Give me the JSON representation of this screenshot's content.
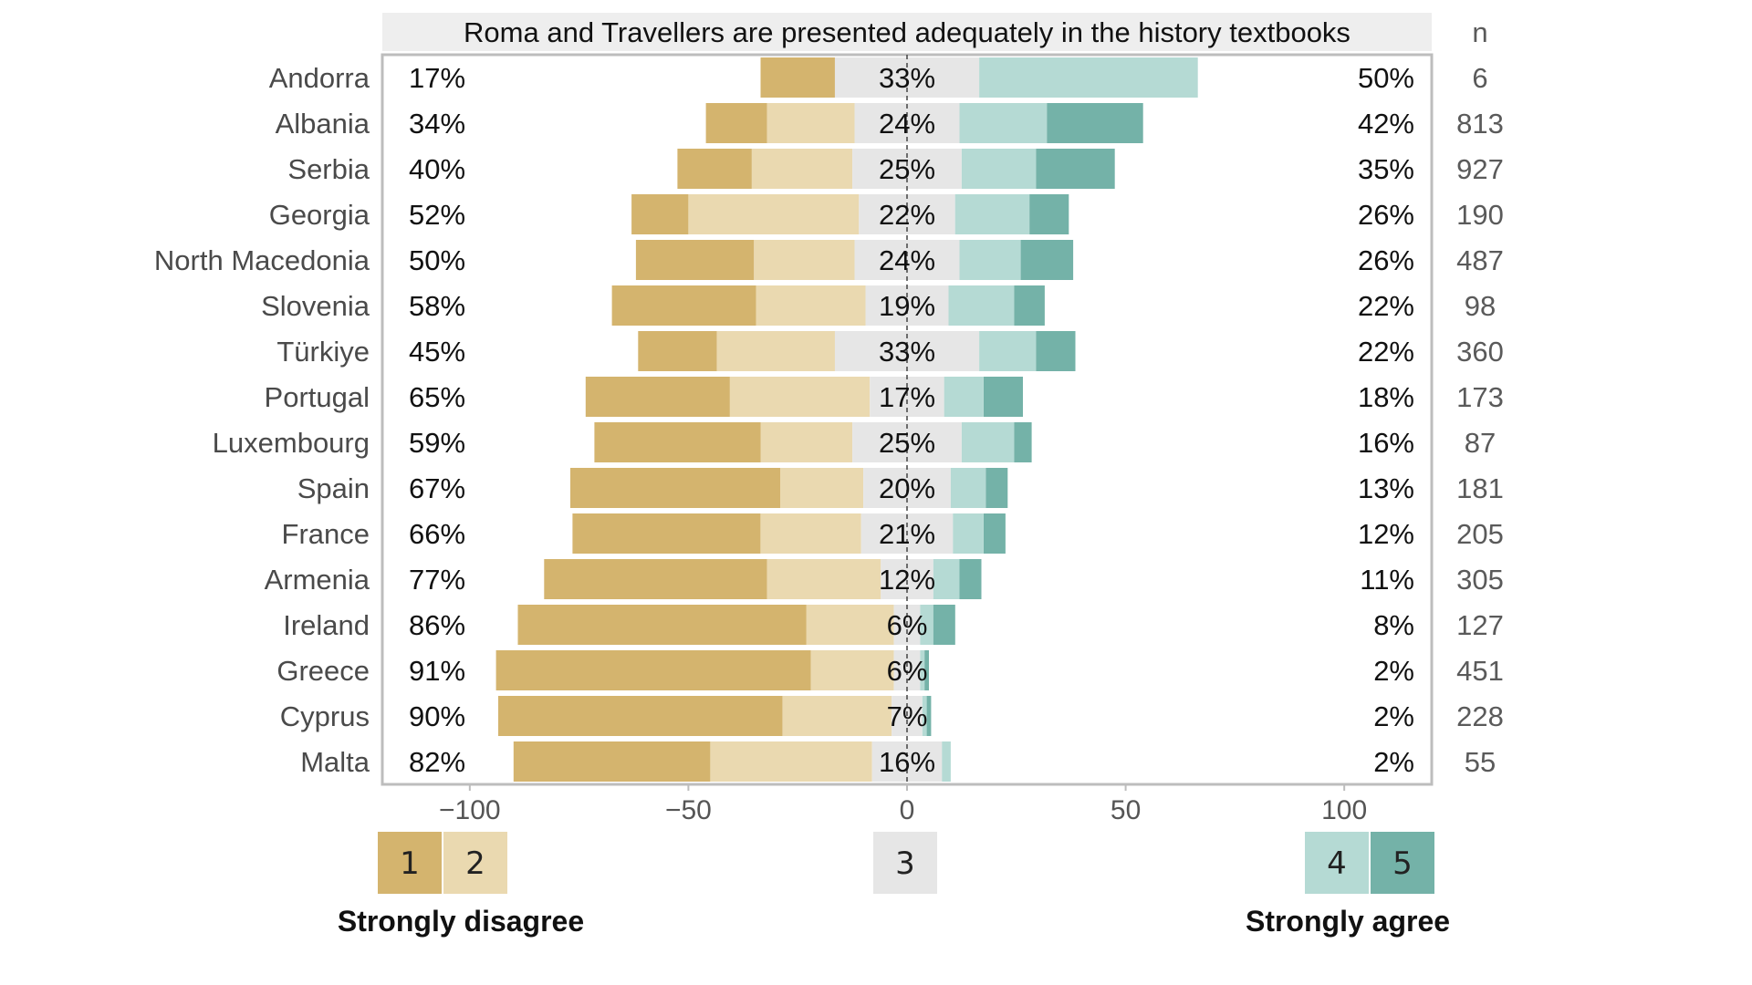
{
  "chart_data": {
    "type": "bar",
    "subtype": "diverging-stacked-horizontal",
    "title": "Roma and Travellers are presented adequately in the history textbooks",
    "n_header": "n",
    "xlim": [
      -120,
      120
    ],
    "xticks": [
      -100,
      -50,
      0,
      50,
      100
    ],
    "xtick_labels": [
      "−100",
      "−50",
      "0",
      "50",
      "100"
    ],
    "categories": [
      "Andorra",
      "Albania",
      "Serbia",
      "Georgia",
      "North Macedonia",
      "Slovenia",
      "Türkiye",
      "Portugal",
      "Luxembourg",
      "Spain",
      "France",
      "Armenia",
      "Ireland",
      "Greece",
      "Cyprus",
      "Malta"
    ],
    "series": [
      {
        "name": "1",
        "color": "#d4b46e",
        "values": [
          17,
          14,
          17,
          13,
          27,
          33,
          18,
          33,
          38,
          48,
          43,
          51,
          66,
          72,
          65,
          45
        ]
      },
      {
        "name": "2",
        "color": "#ead9b0",
        "values": [
          0,
          20,
          23,
          39,
          23,
          25,
          27,
          32,
          21,
          19,
          23,
          26,
          20,
          19,
          25,
          37
        ]
      },
      {
        "name": "3",
        "color": "#e6e6e6",
        "values": [
          33,
          24,
          25,
          22,
          24,
          19,
          33,
          17,
          25,
          20,
          21,
          12,
          6,
          6,
          7,
          16
        ]
      },
      {
        "name": "4",
        "color": "#b5dad4",
        "values": [
          50,
          20,
          17,
          17,
          14,
          15,
          13,
          9,
          12,
          8,
          7,
          6,
          3,
          1,
          1,
          2
        ]
      },
      {
        "name": "5",
        "color": "#74b2a8",
        "values": [
          0,
          22,
          18,
          9,
          12,
          7,
          9,
          9,
          4,
          5,
          5,
          5,
          5,
          1,
          1,
          0
        ]
      }
    ],
    "disagree_labels": [
      "17%",
      "34%",
      "40%",
      "52%",
      "50%",
      "58%",
      "45%",
      "65%",
      "59%",
      "67%",
      "66%",
      "77%",
      "86%",
      "91%",
      "90%",
      "82%"
    ],
    "neutral_labels": [
      "33%",
      "24%",
      "25%",
      "22%",
      "24%",
      "19%",
      "33%",
      "17%",
      "25%",
      "20%",
      "21%",
      "12%",
      "6%",
      "6%",
      "7%",
      "16%"
    ],
    "agree_labels": [
      "50%",
      "42%",
      "35%",
      "26%",
      "26%",
      "22%",
      "22%",
      "18%",
      "16%",
      "13%",
      "12%",
      "11%",
      "8%",
      "2%",
      "2%",
      "2%"
    ],
    "n_values": [
      "6",
      "813",
      "927",
      "190",
      "487",
      "98",
      "360",
      "173",
      "87",
      "181",
      "205",
      "305",
      "127",
      "451",
      "228",
      "55"
    ],
    "legend": {
      "items": [
        {
          "label": "1",
          "color": "#d4b46e"
        },
        {
          "label": "2",
          "color": "#ead9b0"
        },
        {
          "label": "3",
          "color": "#e6e6e6"
        },
        {
          "label": "4",
          "color": "#b5dad4"
        },
        {
          "label": "5",
          "color": "#74b2a8"
        }
      ],
      "left_caption": "Strongly disagree",
      "right_caption": "Strongly agree"
    }
  }
}
